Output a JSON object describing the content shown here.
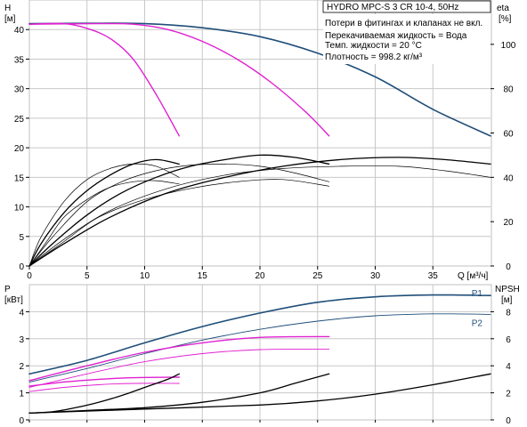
{
  "title": "HYDRO MPC-S 3 CR 10-4, 50Hz",
  "info_lines": [
    "Потери в фитингах и клапанах не вкл.",
    "Перекачиваемая жидкость = Вода",
    "Темп. жидкости = 20 °C",
    "Плотность = 998.2 кг/м³"
  ],
  "colors": {
    "blue": "#1f4e79",
    "magenta": "#e020d0",
    "black": "#000000",
    "grid": "#c8c8c8",
    "axis_ref": "#c8a8c8"
  },
  "chart_data": [
    {
      "type": "line",
      "name": "H-Q / eta-Q",
      "xlabel": "Q [м³/ч]",
      "ylabel_left": [
        "H",
        "[м]"
      ],
      "ylabel_right": [
        "eta",
        "[%]"
      ],
      "xlim": [
        0,
        40
      ],
      "ylim": [
        0,
        45
      ],
      "ylim_right": [
        0,
        120
      ],
      "x_ticks": [
        0,
        5,
        10,
        15,
        20,
        25,
        30,
        35
      ],
      "y_ticks_left": [
        0,
        5,
        10,
        15,
        20,
        25,
        30,
        35,
        40
      ],
      "y_ticks_right": [
        0,
        20,
        40,
        60,
        80,
        100
      ],
      "series": [
        {
          "color": "blue",
          "width": 1.6,
          "axis": "left",
          "points": [
            [
              0,
              41
            ],
            [
              5,
              41.05
            ],
            [
              10,
              41
            ],
            [
              15,
              40.3
            ],
            [
              20,
              38.8
            ],
            [
              25,
              36
            ],
            [
              30,
              32
            ],
            [
              35,
              26.5
            ],
            [
              40,
              22
            ]
          ]
        },
        {
          "color": "magenta",
          "width": 1.4,
          "axis": "left",
          "points": [
            [
              0,
              40.9
            ],
            [
              3,
              41
            ],
            [
              5,
              40.2
            ],
            [
              7,
              38.5
            ],
            [
              9,
              35
            ],
            [
              11,
              29
            ],
            [
              13,
              22
            ]
          ]
        },
        {
          "color": "magenta",
          "width": 1.4,
          "axis": "left",
          "points": [
            [
              0,
              40.9
            ],
            [
              6,
              41
            ],
            [
              9,
              40.9
            ],
            [
              12,
              40
            ],
            [
              15,
              38
            ],
            [
              18,
              35
            ],
            [
              21,
              31
            ],
            [
              24,
              26
            ],
            [
              26,
              22
            ]
          ]
        },
        {
          "color": "black",
          "width": 1.3,
          "axis": "right",
          "points": [
            [
              0,
              0
            ],
            [
              1,
              10
            ],
            [
              3,
              24
            ],
            [
              5,
              34
            ],
            [
              7,
              41
            ],
            [
              9,
              46
            ],
            [
              11,
              48
            ],
            [
              13,
              46
            ]
          ]
        },
        {
          "color": "black",
          "width": 1.3,
          "axis": "right",
          "points": [
            [
              0,
              0
            ],
            [
              2,
              10
            ],
            [
              5,
              23
            ],
            [
              8,
              33
            ],
            [
              11,
              40
            ],
            [
              14,
              45
            ],
            [
              17,
              48
            ],
            [
              20,
              50
            ],
            [
              23,
              49
            ],
            [
              26,
              46
            ]
          ]
        },
        {
          "color": "black",
          "width": 1.3,
          "axis": "right",
          "points": [
            [
              0,
              0
            ],
            [
              3,
              10
            ],
            [
              7,
              22
            ],
            [
              12,
              33
            ],
            [
              17,
              40
            ],
            [
              22,
              45
            ],
            [
              27,
              48
            ],
            [
              32,
              49
            ],
            [
              36,
              48
            ],
            [
              40,
              46
            ]
          ]
        },
        {
          "color": "black",
          "width": 0.7,
          "axis": "right",
          "points": [
            [
              0,
              0
            ],
            [
              1,
              13
            ],
            [
              3,
              29
            ],
            [
              5,
              39
            ],
            [
              7,
              44
            ],
            [
              9,
              46
            ],
            [
              11,
              45
            ],
            [
              13,
              40
            ]
          ]
        },
        {
          "color": "black",
          "width": 0.7,
          "axis": "right",
          "points": [
            [
              0,
              0
            ],
            [
              1.5,
              11
            ],
            [
              3,
              22
            ],
            [
              5,
              30
            ],
            [
              7,
              35.5
            ],
            [
              9,
              38
            ],
            [
              11,
              38.5
            ],
            [
              13,
              37
            ]
          ]
        },
        {
          "color": "black",
          "width": 0.7,
          "axis": "right",
          "points": [
            [
              0,
              0
            ],
            [
              2,
              13
            ],
            [
              5,
              29
            ],
            [
              8,
              38
            ],
            [
              11,
              43
            ],
            [
              14,
              45.5
            ],
            [
              17,
              46
            ],
            [
              20,
              45
            ],
            [
              23,
              42
            ],
            [
              26,
              38
            ]
          ]
        },
        {
          "color": "black",
          "width": 0.7,
          "axis": "right",
          "points": [
            [
              0,
              0
            ],
            [
              3,
              11
            ],
            [
              6,
              22
            ],
            [
              10,
              30
            ],
            [
              14,
              35
            ],
            [
              18,
              38
            ],
            [
              22,
              39
            ],
            [
              26,
              36
            ]
          ]
        },
        {
          "color": "black",
          "width": 0.7,
          "axis": "right",
          "points": [
            [
              0,
              0
            ],
            [
              3,
              12
            ],
            [
              7,
              25
            ],
            [
              12,
              35
            ],
            [
              17,
              41
            ],
            [
              22,
              44
            ],
            [
              27,
              45
            ],
            [
              32,
              45
            ],
            [
              36,
              43
            ],
            [
              40,
              40
            ]
          ]
        }
      ]
    },
    {
      "type": "line",
      "name": "P-Q / NPSH-Q",
      "ylabel_left": [
        "P",
        "[кВт]"
      ],
      "ylabel_right": [
        "NPSH",
        "[м]"
      ],
      "xlim": [
        0,
        40
      ],
      "ylim": [
        0,
        5
      ],
      "ylim_right": [
        0,
        10
      ],
      "x_ticks": [
        0,
        5,
        10,
        15,
        20,
        25,
        30,
        35
      ],
      "y_ticks_left": [
        0,
        1,
        2,
        3,
        4
      ],
      "y_ticks_right": [
        0,
        2,
        4,
        6,
        8
      ],
      "series_labels": [
        {
          "text": "P1",
          "x": 39.3,
          "y": 4.7,
          "color": "blue"
        },
        {
          "text": "P2",
          "x": 39.3,
          "y": 3.6,
          "color": "blue"
        }
      ],
      "series": [
        {
          "name": "P1",
          "color": "blue",
          "width": 1.6,
          "axis": "left",
          "points": [
            [
              0,
              1.7
            ],
            [
              5,
              2.2
            ],
            [
              10,
              2.85
            ],
            [
              15,
              3.45
            ],
            [
              20,
              3.95
            ],
            [
              25,
              4.35
            ],
            [
              30,
              4.55
            ],
            [
              35,
              4.62
            ],
            [
              40,
              4.6
            ]
          ]
        },
        {
          "name": "P2",
          "color": "blue",
          "width": 0.9,
          "axis": "left",
          "points": [
            [
              0,
              1.4
            ],
            [
              5,
              1.9
            ],
            [
              10,
              2.45
            ],
            [
              15,
              2.95
            ],
            [
              20,
              3.35
            ],
            [
              25,
              3.65
            ],
            [
              30,
              3.85
            ],
            [
              35,
              3.92
            ],
            [
              40,
              3.9
            ]
          ]
        },
        {
          "color": "magenta",
          "width": 1.4,
          "axis": "left",
          "points": [
            [
              0,
              1.25
            ],
            [
              3,
              1.4
            ],
            [
              6,
              1.5
            ],
            [
              9,
              1.56
            ],
            [
              13,
              1.58
            ]
          ]
        },
        {
          "color": "magenta",
          "width": 0.9,
          "axis": "left",
          "points": [
            [
              0,
              1.05
            ],
            [
              3,
              1.2
            ],
            [
              6,
              1.3
            ],
            [
              9,
              1.35
            ],
            [
              13,
              1.35
            ]
          ]
        },
        {
          "color": "magenta",
          "width": 1.4,
          "axis": "left",
          "points": [
            [
              0,
              1.45
            ],
            [
              5,
              2
            ],
            [
              10,
              2.5
            ],
            [
              15,
              2.85
            ],
            [
              20,
              3.05
            ],
            [
              26,
              3.08
            ]
          ]
        },
        {
          "color": "magenta",
          "width": 0.9,
          "axis": "left",
          "points": [
            [
              0,
              1.2
            ],
            [
              5,
              1.7
            ],
            [
              10,
              2.15
            ],
            [
              15,
              2.45
            ],
            [
              20,
              2.6
            ],
            [
              26,
              2.62
            ]
          ]
        },
        {
          "color": "black",
          "width": 1.3,
          "axis": "right",
          "points": [
            [
              0,
              0.5
            ],
            [
              2,
              0.6
            ],
            [
              4,
              0.9
            ],
            [
              6,
              1.3
            ],
            [
              8,
              1.8
            ],
            [
              10,
              2.4
            ],
            [
              12,
              3
            ],
            [
              13,
              3.4
            ]
          ]
        },
        {
          "color": "black",
          "width": 1.3,
          "axis": "right",
          "points": [
            [
              0,
              0.5
            ],
            [
              5,
              0.7
            ],
            [
              10,
              0.9
            ],
            [
              15,
              1.3
            ],
            [
              20,
              2
            ],
            [
              23,
              2.7
            ],
            [
              26,
              3.4
            ]
          ]
        },
        {
          "color": "black",
          "width": 1.3,
          "axis": "right",
          "points": [
            [
              0,
              0.5
            ],
            [
              10,
              0.8
            ],
            [
              20,
              1.1
            ],
            [
              25,
              1.4
            ],
            [
              30,
              1.9
            ],
            [
              35,
              2.6
            ],
            [
              40,
              3.4
            ]
          ]
        }
      ]
    }
  ]
}
